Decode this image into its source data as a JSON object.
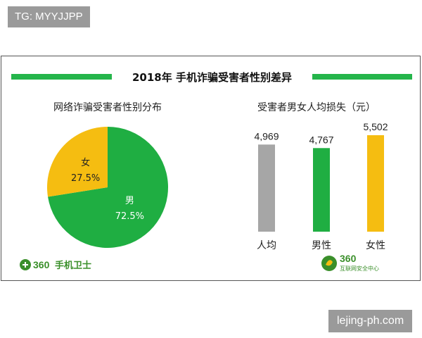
{
  "watermark_top": "TG: MYYJJPP",
  "watermark_bottom": "lejing-ph.com",
  "title": "2018年 手机诈骗受害者性别差异",
  "colors": {
    "green": "#1fae42",
    "yellow": "#f5bd11",
    "gray": "#a6a6a6",
    "header_bar": "#25b54b"
  },
  "chart_data": [
    {
      "type": "pie",
      "title": "网络诈骗受害者性别分布",
      "slices": [
        {
          "label": "男",
          "value": 72.5,
          "value_label": "72.5%",
          "color": "#1fae42"
        },
        {
          "label": "女",
          "value": 27.5,
          "value_label": "27.5%",
          "color": "#f5bd11"
        }
      ]
    },
    {
      "type": "bar",
      "title": "受害者男女人均损失（元）",
      "categories": [
        "人均",
        "男性",
        "女性"
      ],
      "values": [
        4969,
        4767,
        5502
      ],
      "value_labels": [
        "4,969",
        "4,767",
        "5,502"
      ],
      "colors": [
        "#a6a6a6",
        "#1fae42",
        "#f5bd11"
      ]
    }
  ],
  "logos": {
    "left": {
      "number": "360",
      "text": "手机卫士",
      "icon": "plus-circle-icon"
    },
    "right": {
      "number": "360",
      "text": "互联网安全中心",
      "icon": "leaf-shield-icon"
    }
  }
}
